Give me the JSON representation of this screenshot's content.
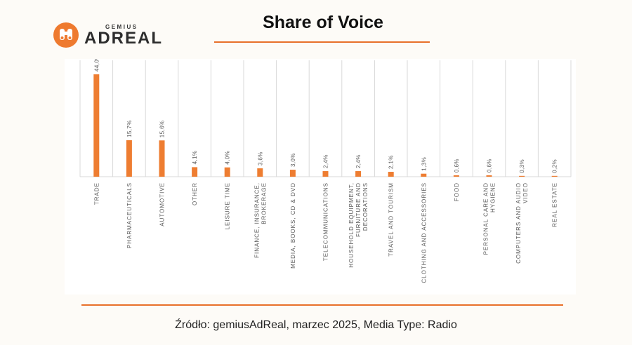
{
  "header": {
    "logo_small": "GEMIUS",
    "logo_big": "ADREAL",
    "title": "Share of Voice"
  },
  "footer": {
    "source": "Źródło: gemiusAdReal, marzec 2025, Media Type: Radio"
  },
  "colors": {
    "accent": "#e8702a",
    "bar": "#ee7d31",
    "grid": "#d9d9d9",
    "label": "#595959"
  },
  "chart_data": {
    "type": "bar",
    "title": "Share of Voice",
    "categories": [
      [
        "TRADE"
      ],
      [
        "PHARMACEUTICALS"
      ],
      [
        "AUTOMOTIVE"
      ],
      [
        "OTHER"
      ],
      [
        "LEISURE TIME"
      ],
      [
        "FINANCE, INSURANCE,",
        "BROKERAGE"
      ],
      [
        "MEDIA, BOOKS, CD & DVD"
      ],
      [
        "TELECOMMUNICATIONS"
      ],
      [
        "HOUSEHOLD EQUIPMENT,",
        "FURNITURE AND",
        "DECORATIONS"
      ],
      [
        "TRAVEL AND TOURISM"
      ],
      [
        "CLOTHING AND ACCESSORIES"
      ],
      [
        "FOOD"
      ],
      [
        "PERSONAL CARE AND",
        "HYGIENE"
      ],
      [
        "COMPUTERS AND AUDIO",
        "VIDEO"
      ],
      [
        "REAL ESTATE"
      ]
    ],
    "values": [
      44.0,
      15.7,
      15.6,
      4.1,
      4.0,
      3.6,
      3.0,
      2.4,
      2.4,
      2.1,
      1.3,
      0.6,
      0.6,
      0.3,
      0.2
    ],
    "value_labels": [
      "44,0%",
      "15,7%",
      "15,6%",
      "4,1%",
      "4,0%",
      "3,6%",
      "3,0%",
      "2,4%",
      "2,4%",
      "2,1%",
      "1,3%",
      "0,6%",
      "0,6%",
      "0,3%",
      "0,2%"
    ],
    "unit": "%",
    "ylim": [
      0,
      44
    ],
    "grid": "vertical separators",
    "legend": "none"
  }
}
